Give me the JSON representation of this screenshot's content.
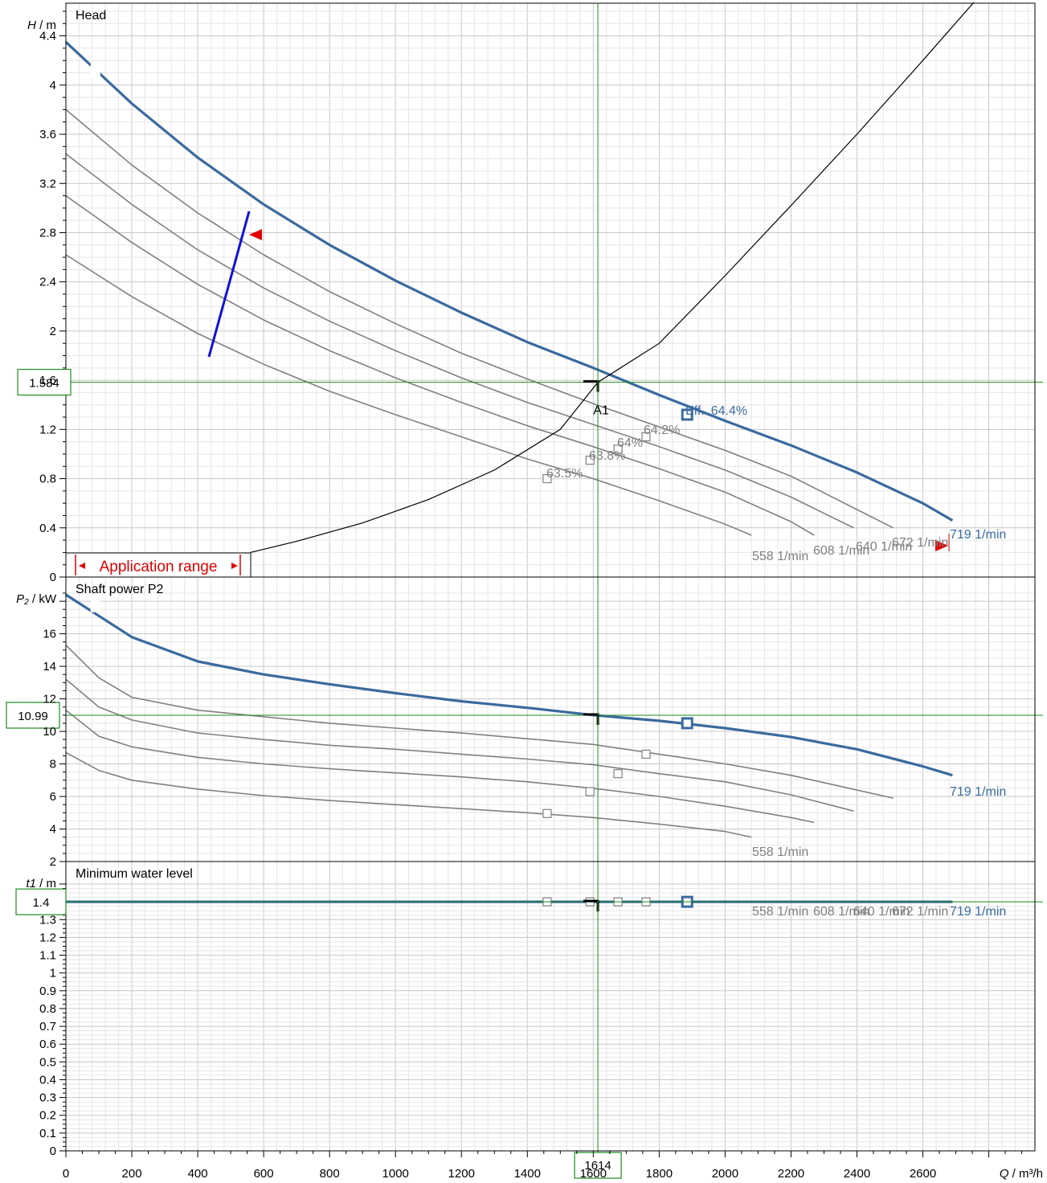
{
  "chart_data": [
    {
      "type": "line",
      "title": "Head",
      "ylabel_var": "H",
      "ylabel_unit": " / m",
      "ylim": [
        0,
        4.6
      ],
      "yticks": [
        "0",
        "0.4",
        "0.8",
        "1.2",
        "1.6",
        "2",
        "2.4",
        "2.8",
        "3.2",
        "3.6",
        "4",
        "4.4"
      ],
      "operating_value": "1.584",
      "point_label": "A1",
      "eff_label": "Eff.",
      "eff_value": "64.4%",
      "application_range": "Application range",
      "series": [
        {
          "name": "558 1/min",
          "x": [
            0,
            200,
            400,
            600,
            800,
            1000,
            1200,
            1400,
            1600,
            1800,
            2000,
            2080
          ],
          "y": [
            2.62,
            2.28,
            1.98,
            1.73,
            1.51,
            1.32,
            1.14,
            0.96,
            0.8,
            0.62,
            0.43,
            0.34
          ]
        },
        {
          "name": "608 1/min",
          "x": [
            0,
            200,
            400,
            600,
            800,
            1000,
            1200,
            1400,
            1600,
            1800,
            2000,
            2200,
            2270
          ],
          "y": [
            3.1,
            2.72,
            2.38,
            2.09,
            1.84,
            1.62,
            1.42,
            1.23,
            1.06,
            0.88,
            0.69,
            0.45,
            0.34
          ]
        },
        {
          "name": "640 1/min",
          "x": [
            0,
            200,
            400,
            600,
            800,
            1000,
            1200,
            1400,
            1600,
            1800,
            2000,
            2200,
            2390
          ],
          "y": [
            3.44,
            3.03,
            2.66,
            2.35,
            2.08,
            1.84,
            1.62,
            1.42,
            1.24,
            1.06,
            0.87,
            0.65,
            0.4
          ]
        },
        {
          "name": "672 1/min",
          "x": [
            0,
            200,
            400,
            600,
            800,
            1000,
            1200,
            1400,
            1600,
            1800,
            2000,
            2200,
            2510
          ],
          "y": [
            3.8,
            3.35,
            2.96,
            2.62,
            2.32,
            2.06,
            1.82,
            1.61,
            1.41,
            1.22,
            1.03,
            0.82,
            0.4
          ]
        },
        {
          "name": "719 1/min",
          "x": [
            0,
            200,
            400,
            600,
            800,
            1000,
            1200,
            1400,
            1600,
            1800,
            2000,
            2200,
            2400,
            2600,
            2690
          ],
          "y": [
            4.35,
            3.85,
            3.41,
            3.03,
            2.7,
            2.41,
            2.15,
            1.91,
            1.7,
            1.48,
            1.27,
            1.07,
            0.85,
            0.6,
            0.46
          ]
        }
      ],
      "efficiency_points": [
        {
          "label": "63.5%",
          "x": 1460,
          "y": 0.8
        },
        {
          "label": "63.8%",
          "x": 1590,
          "y": 0.95
        },
        {
          "label": "64%",
          "x": 1675,
          "y": 1.04
        },
        {
          "label": "64.2%",
          "x": 1760,
          "y": 1.14
        }
      ],
      "system_curve": {
        "x": [
          560,
          700,
          900,
          1100,
          1300,
          1500,
          1614,
          1800,
          2000,
          2200,
          2400,
          2600,
          2780
        ],
        "y": [
          0.2,
          0.29,
          0.44,
          0.63,
          0.87,
          1.2,
          1.584,
          1.9,
          2.45,
          3.02,
          3.6,
          4.2,
          4.75
        ]
      },
      "bep_x": 1885,
      "bep_y": 1.32
    },
    {
      "type": "line",
      "title": "Shaft power P2",
      "ylabel_var": "P₂",
      "ylabel_unit": " / kW",
      "ylim": [
        2,
        18.5
      ],
      "yticks": [
        "2",
        "4",
        "6",
        "8",
        "10",
        "12",
        "14",
        "16"
      ],
      "operating_value": "10.99",
      "series": [
        {
          "name": "558 1/min",
          "x": [
            0,
            100,
            200,
            400,
            600,
            800,
            1000,
            1200,
            1400,
            1600,
            1800,
            2000,
            2080
          ],
          "y": [
            8.7,
            7.6,
            7.0,
            6.45,
            6.05,
            5.75,
            5.5,
            5.25,
            5.0,
            4.7,
            4.3,
            3.85,
            3.5
          ]
        },
        {
          "name": "608 1/min",
          "x": [
            0,
            100,
            200,
            400,
            600,
            800,
            1000,
            1200,
            1400,
            1600,
            1800,
            2000,
            2200,
            2270
          ],
          "y": [
            11.3,
            9.7,
            9.05,
            8.4,
            8.0,
            7.7,
            7.45,
            7.2,
            6.9,
            6.5,
            6.0,
            5.4,
            4.7,
            4.4
          ]
        },
        {
          "name": "640 1/min",
          "x": [
            0,
            100,
            200,
            400,
            600,
            800,
            1000,
            1200,
            1400,
            1600,
            1800,
            2000,
            2200,
            2390
          ],
          "y": [
            13.2,
            11.5,
            10.7,
            9.9,
            9.5,
            9.15,
            8.9,
            8.6,
            8.3,
            7.95,
            7.4,
            6.9,
            6.1,
            5.1
          ]
        },
        {
          "name": "672 1/min",
          "x": [
            0,
            100,
            200,
            400,
            600,
            800,
            1000,
            1200,
            1400,
            1600,
            1800,
            2000,
            2200,
            2510
          ],
          "y": [
            15.3,
            13.3,
            12.1,
            11.3,
            10.9,
            10.5,
            10.2,
            9.9,
            9.55,
            9.2,
            8.6,
            8.0,
            7.3,
            5.9
          ]
        },
        {
          "name": "719 1/min",
          "x": [
            0,
            100,
            200,
            400,
            600,
            800,
            1000,
            1200,
            1400,
            1600,
            1800,
            2000,
            2200,
            2400,
            2600,
            2690
          ],
          "y": [
            18.4,
            17.1,
            15.8,
            14.3,
            13.5,
            12.9,
            12.35,
            11.85,
            11.45,
            11.0,
            10.65,
            10.2,
            9.65,
            8.9,
            7.85,
            7.3
          ]
        }
      ],
      "markers": [
        {
          "x": 1460,
          "y": 4.95
        },
        {
          "x": 1590,
          "y": 6.3
        },
        {
          "x": 1675,
          "y": 7.4
        },
        {
          "x": 1760,
          "y": 8.6
        }
      ],
      "bep_x": 1885,
      "bep_y": 10.5
    },
    {
      "type": "line",
      "title": "Minimum water level",
      "ylabel_var": "t1",
      "ylabel_unit": " / m",
      "ylim": [
        0,
        1.5
      ],
      "yticks": [
        "0",
        "0.1",
        "0.2",
        "0.3",
        "0.4",
        "0.5",
        "0.6",
        "0.7",
        "0.8",
        "0.9",
        "1",
        "1.1",
        "1.2",
        "1.3"
      ],
      "operating_value": "1.4",
      "series": [
        {
          "name": "558 1/min",
          "x": [
            0,
            2080
          ],
          "y": [
            1.4,
            1.4
          ]
        },
        {
          "name": "608 1/min",
          "x": [
            0,
            2270
          ],
          "y": [
            1.4,
            1.4
          ]
        },
        {
          "name": "640 1/min",
          "x": [
            0,
            2390
          ],
          "y": [
            1.4,
            1.4
          ]
        },
        {
          "name": "672 1/min",
          "x": [
            0,
            2510
          ],
          "y": [
            1.4,
            1.4
          ]
        },
        {
          "name": "719 1/min",
          "x": [
            0,
            2690
          ],
          "y": [
            1.4,
            1.4
          ]
        }
      ],
      "markers": [
        {
          "x": 1460,
          "y": 1.4
        },
        {
          "x": 1590,
          "y": 1.4
        },
        {
          "x": 1675,
          "y": 1.4
        },
        {
          "x": 1760,
          "y": 1.4
        }
      ],
      "bep_x": 1885,
      "bep_y": 1.4
    }
  ],
  "xaxis": {
    "xlim": [
      0,
      2940
    ],
    "ticks": [
      "0",
      "200",
      "400",
      "600",
      "800",
      "1000",
      "1200",
      "1400",
      "1600",
      "1800",
      "2000",
      "2200",
      "2400",
      "2600"
    ],
    "label_var": "Q",
    "label_unit": " / m³/h",
    "operating_value": "1614",
    "operating_x": 1614
  },
  "colors": {
    "main_curve": "#3a6a9e",
    "other_curves": "#808080",
    "grid_major": "#c8c8c8",
    "grid_minor": "#e6e6e6",
    "operating_lines": "#1e8c1e",
    "application_range": "#e00000",
    "limit_line": "#1010dd",
    "system_curve": "#000000"
  }
}
